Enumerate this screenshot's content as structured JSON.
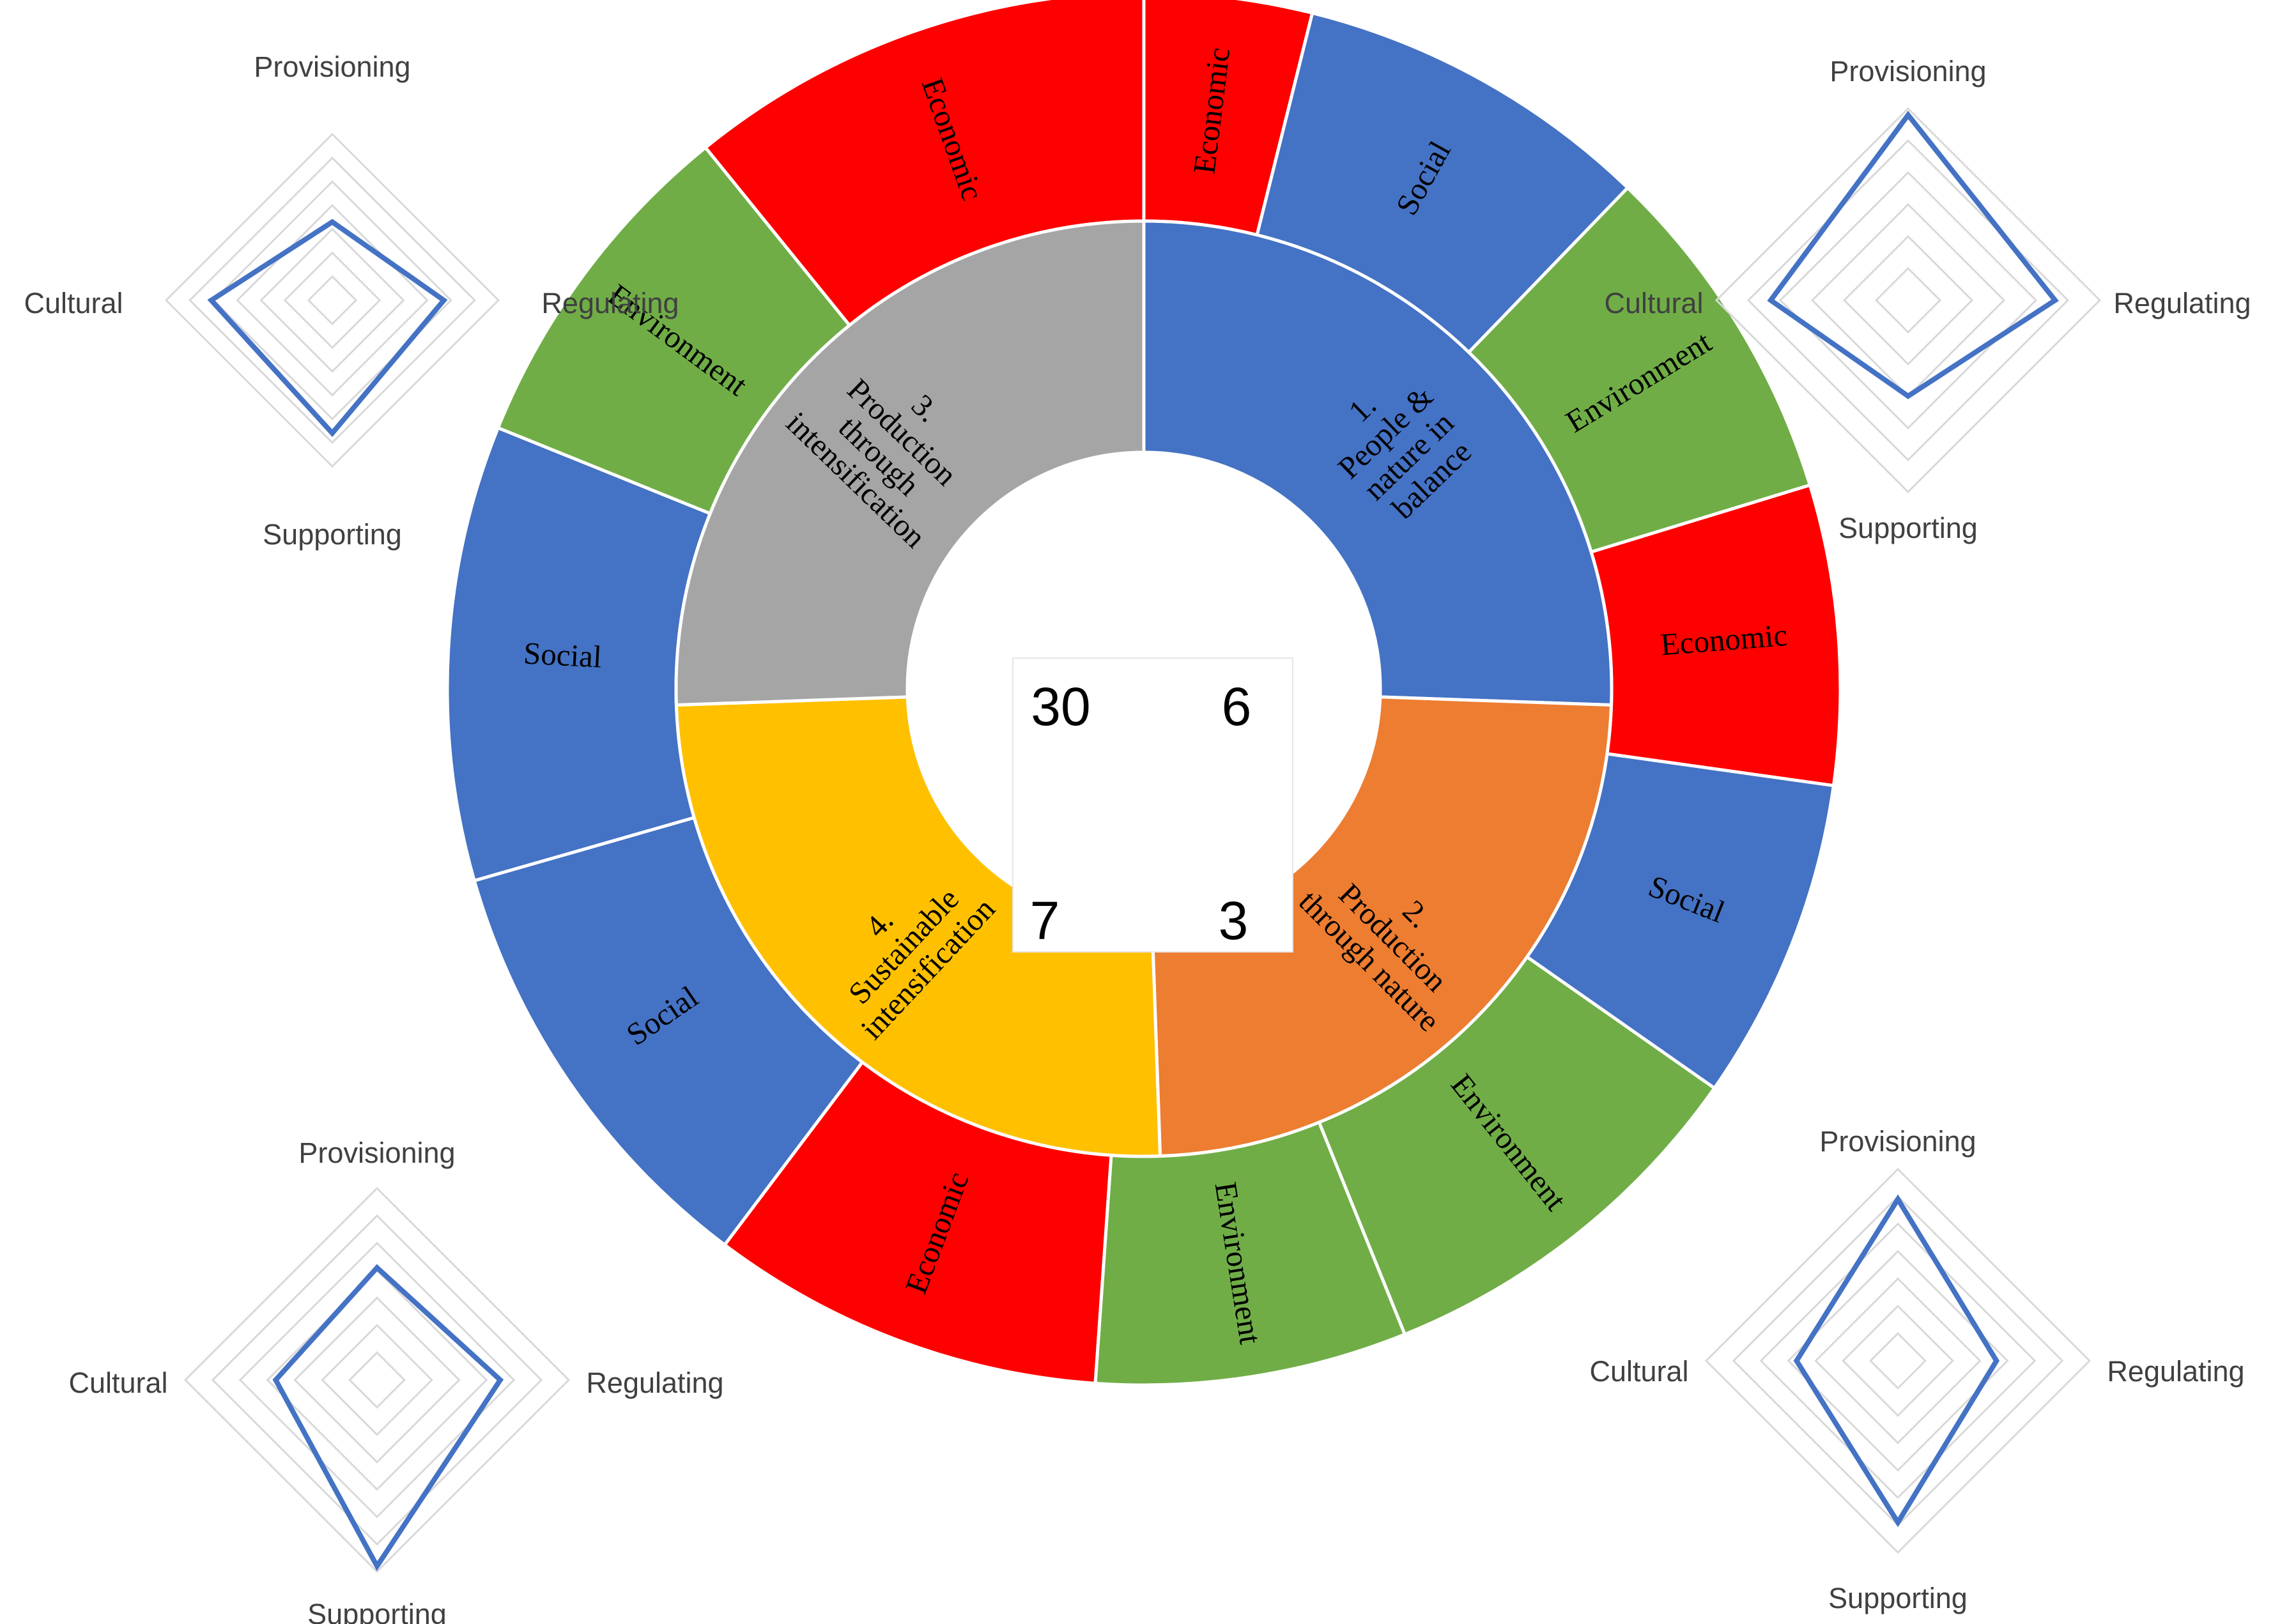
{
  "chart_data": {
    "type": "sunburst",
    "colors": {
      "blue": "#4472C4",
      "red": "#FF0000",
      "green": "#70AD47",
      "gray": "#A5A5A5",
      "orange": "#ED7D31",
      "yellow": "#FFC000",
      "radar_line": "#4472C4",
      "radar_grid": "#D9D9D9"
    },
    "inner_ring": [
      {
        "label_lines": [
          "1.",
          "People &",
          "nature in",
          "balance"
        ],
        "color": "blue",
        "start_deg": 0,
        "end_deg": 92
      },
      {
        "label_lines": [
          "2.",
          "Production",
          "through nature"
        ],
        "color": "orange",
        "start_deg": 92,
        "end_deg": 178
      },
      {
        "label_lines": [
          "4.",
          "Sustainable",
          "intensification"
        ],
        "color": "yellow",
        "start_deg": 178,
        "end_deg": 268
      },
      {
        "label_lines": [
          "3.",
          "Production",
          "through",
          "intensification"
        ],
        "color": "gray",
        "start_deg": 268,
        "end_deg": 360
      }
    ],
    "outer_ring": [
      {
        "label": "Economic",
        "color": "red",
        "start_deg": 0,
        "end_deg": 14
      },
      {
        "label": "Social",
        "color": "blue",
        "start_deg": 14,
        "end_deg": 44
      },
      {
        "label": "Environment",
        "color": "green",
        "start_deg": 44,
        "end_deg": 73
      },
      {
        "label": "Economic",
        "color": "red",
        "start_deg": 73,
        "end_deg": 98
      },
      {
        "label": "Social",
        "color": "blue",
        "start_deg": 98,
        "end_deg": 125
      },
      {
        "label": "Environment",
        "color": "green",
        "start_deg": 125,
        "end_deg": 158
      },
      {
        "label": "Environment",
        "color": "green",
        "start_deg": 158,
        "end_deg": 184
      },
      {
        "label": "Economic",
        "color": "red",
        "start_deg": 184,
        "end_deg": 217
      },
      {
        "label": "Social",
        "color": "blue",
        "start_deg": 217,
        "end_deg": 254
      },
      {
        "label": "Social",
        "color": "blue",
        "start_deg": 254,
        "end_deg": 292
      },
      {
        "label": "Environment",
        "color": "green",
        "start_deg": 292,
        "end_deg": 321
      },
      {
        "label": "Economic",
        "color": "red",
        "start_deg": 321,
        "end_deg": 360
      }
    ],
    "center_values": [
      {
        "position": "top-left",
        "value": "30"
      },
      {
        "position": "top-right",
        "value": "6"
      },
      {
        "position": "bottom-left",
        "value": "7"
      },
      {
        "position": "bottom-right",
        "value": "3"
      }
    ],
    "radar_charts": [
      {
        "position": "top-left",
        "axes": [
          "Provisioning",
          "Regulating",
          "Supporting",
          "Cultural"
        ],
        "values": [
          3.3,
          4.7,
          5.6,
          5.1
        ],
        "max": 7
      },
      {
        "position": "top-right",
        "axes": [
          "Provisioning",
          "Regulating",
          "Supporting",
          "Cultural"
        ],
        "values": [
          5.8,
          4.6,
          3.0,
          4.3
        ],
        "max": 6
      },
      {
        "position": "bottom-left",
        "axes": [
          "Provisioning",
          "Regulating",
          "Supporting",
          "Cultural"
        ],
        "values": [
          4.1,
          4.5,
          6.8,
          3.7
        ],
        "max": 7
      },
      {
        "position": "bottom-right",
        "axes": [
          "Provisioning",
          "Regulating",
          "Supporting",
          "Cultural"
        ],
        "values": [
          5.9,
          3.6,
          5.9,
          3.7
        ],
        "max": 7
      }
    ]
  }
}
